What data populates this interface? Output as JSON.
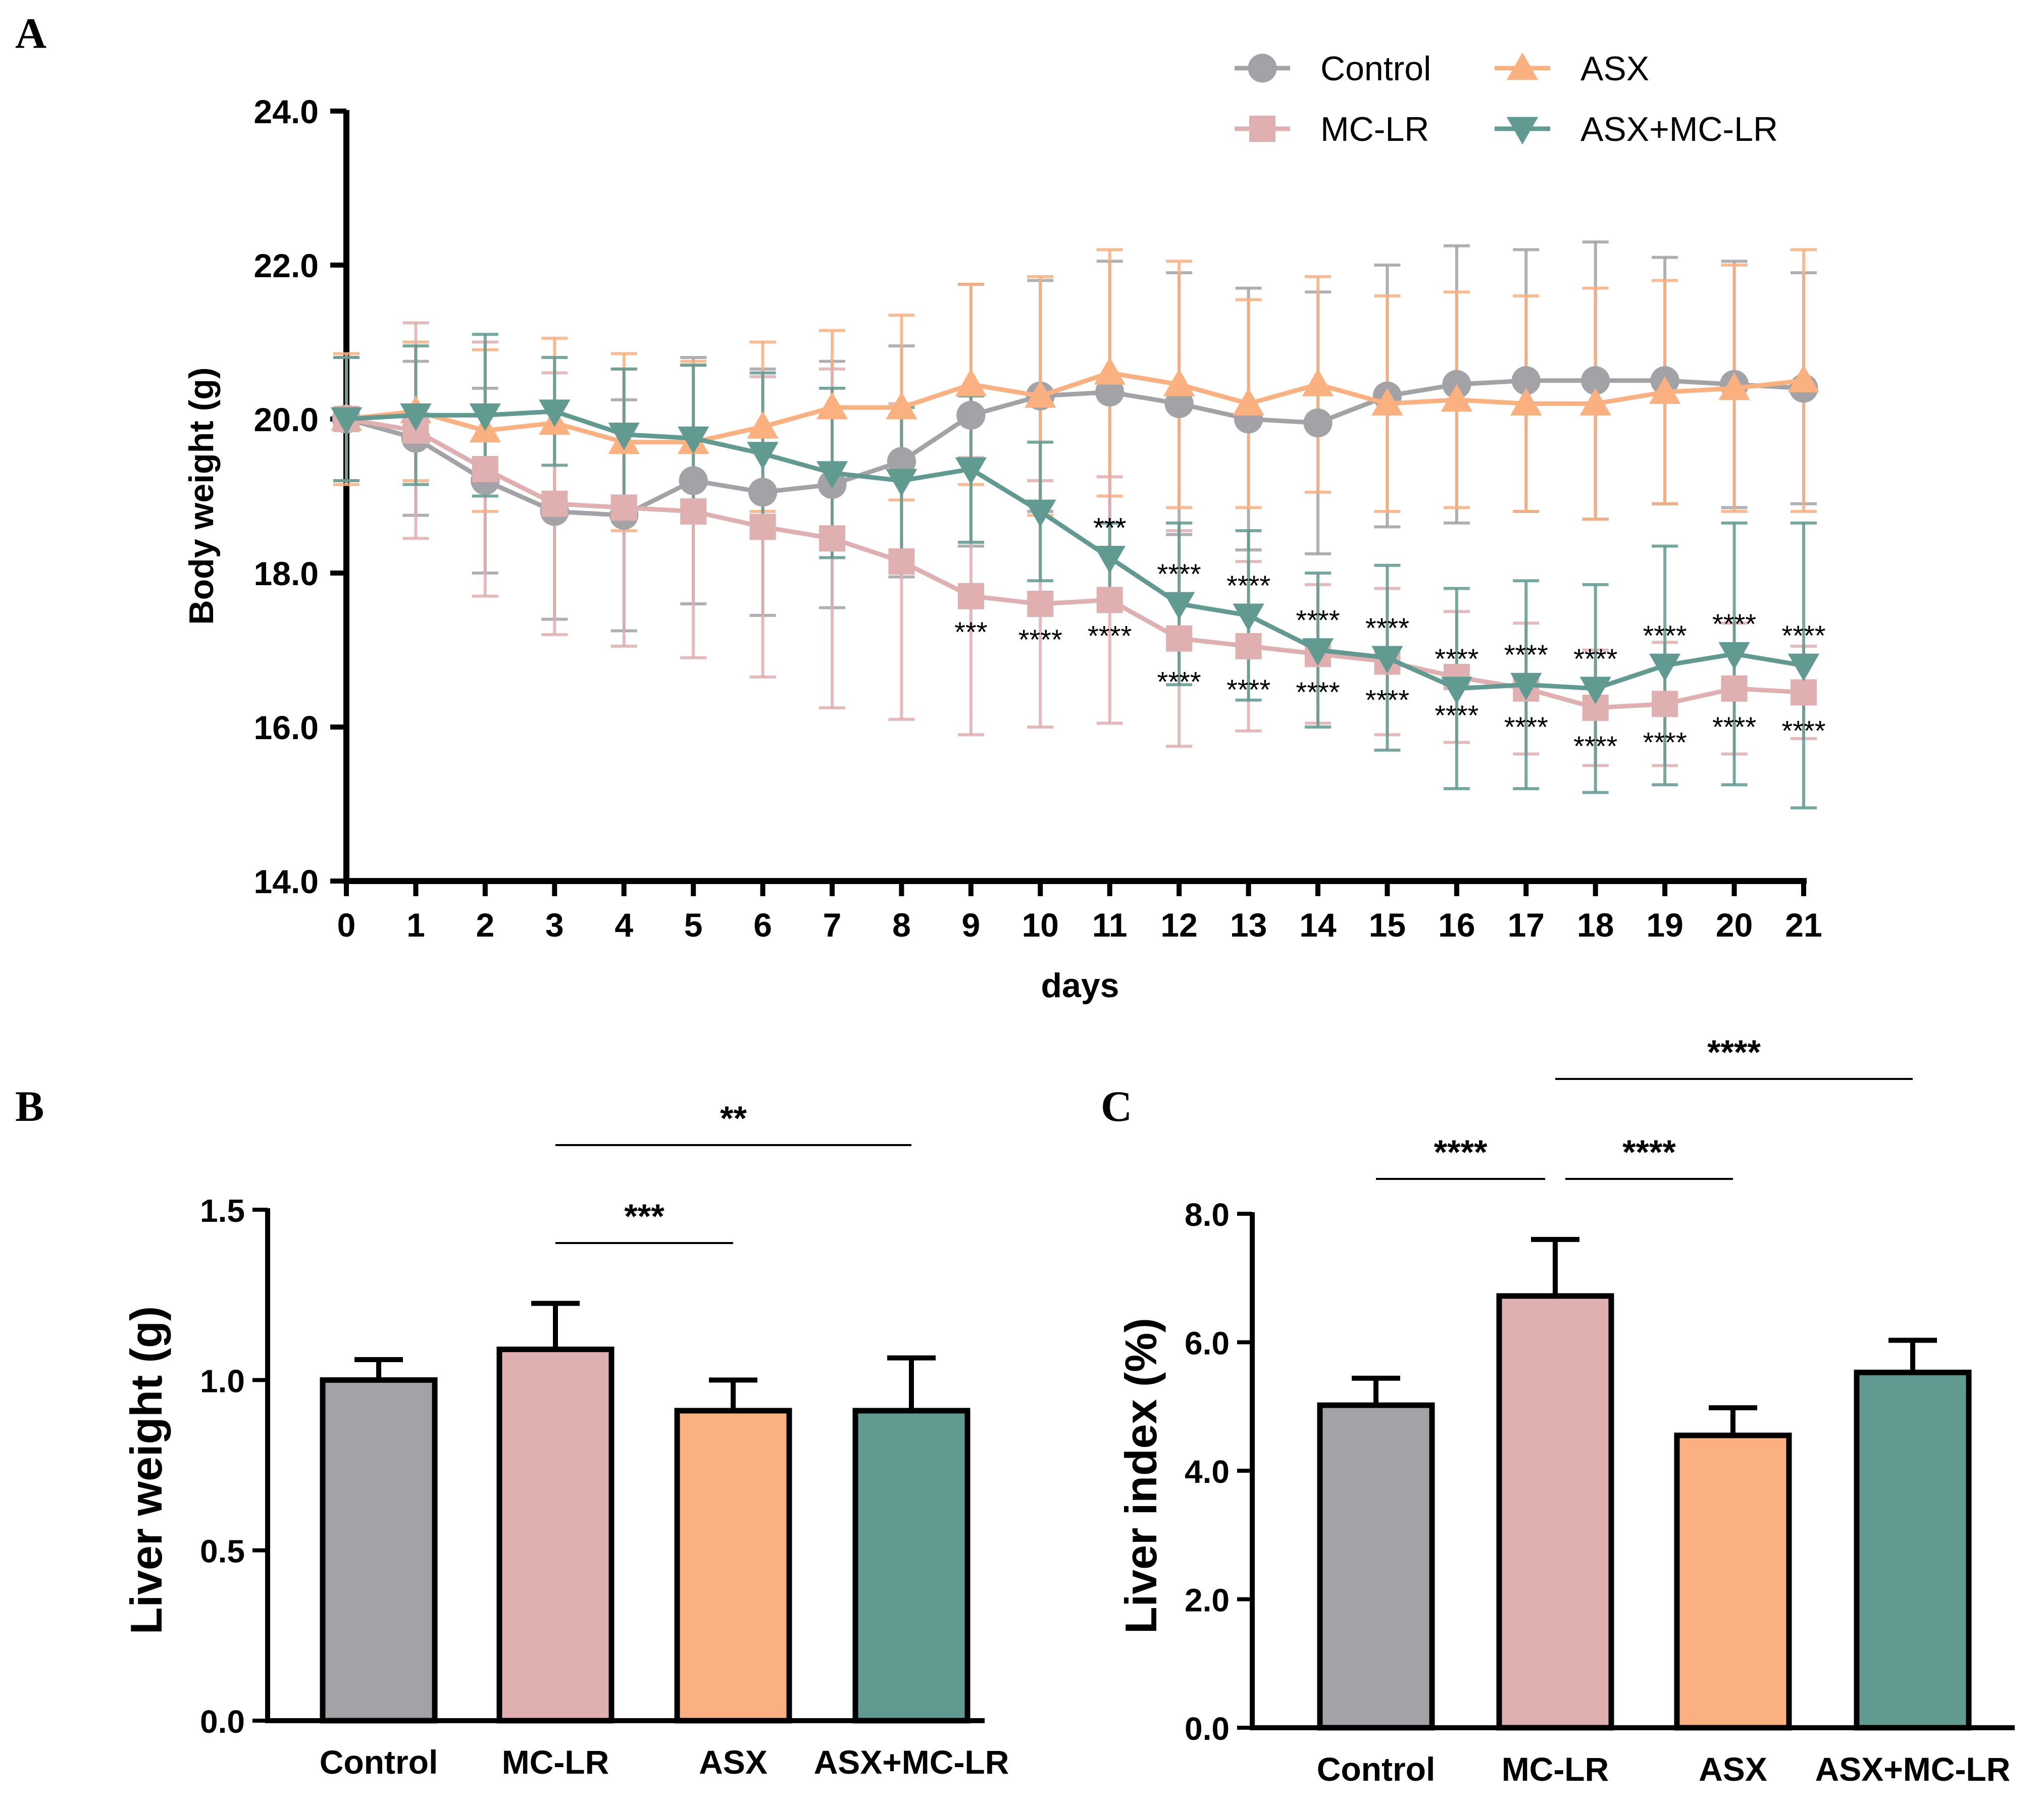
{
  "colors": {
    "control": "#A3A2A7",
    "mclr": "#E0AFB0",
    "asx": "#FBB07F",
    "asx_mclr": "#609A90",
    "axis": "#000000"
  },
  "chart_data": [
    {
      "panel": "A",
      "type": "line",
      "title": "",
      "xlabel": "days",
      "ylabel": "Body weight (g)",
      "xlim": [
        0,
        21
      ],
      "ylim": [
        14.0,
        24.0
      ],
      "x_ticks": [
        "0",
        "1",
        "2",
        "3",
        "4",
        "5",
        "6",
        "7",
        "8",
        "9",
        "10",
        "11",
        "12",
        "13",
        "14",
        "15",
        "16",
        "17",
        "18",
        "19",
        "20",
        "21"
      ],
      "y_ticks": [
        "14.0",
        "16.0",
        "18.0",
        "20.0",
        "22.0",
        "24.0"
      ],
      "legend_position": "top-right",
      "x": [
        0,
        1,
        2,
        3,
        4,
        5,
        6,
        7,
        8,
        9,
        10,
        11,
        12,
        13,
        14,
        15,
        16,
        17,
        18,
        19,
        20,
        21
      ],
      "series": [
        {
          "name": "Control",
          "marker": "circle",
          "color_key": "control",
          "values": [
            20.0,
            19.75,
            19.2,
            18.8,
            18.75,
            19.2,
            19.05,
            19.15,
            19.45,
            20.05,
            20.3,
            20.35,
            20.2,
            20.0,
            19.95,
            20.3,
            20.45,
            20.5,
            20.5,
            20.5,
            20.45,
            20.4
          ],
          "errors": [
            0.8,
            1.0,
            1.2,
            1.4,
            1.5,
            1.6,
            1.6,
            1.6,
            1.5,
            1.7,
            1.5,
            1.7,
            1.7,
            1.7,
            1.7,
            1.7,
            1.8,
            1.7,
            1.8,
            1.6,
            1.6,
            1.5
          ]
        },
        {
          "name": "MC-LR",
          "marker": "square",
          "color_key": "mclr",
          "values": [
            20.0,
            19.85,
            19.35,
            18.9,
            18.85,
            18.8,
            18.6,
            18.45,
            18.15,
            17.7,
            17.6,
            17.65,
            17.15,
            17.05,
            16.95,
            16.85,
            16.65,
            16.5,
            16.25,
            16.3,
            16.5,
            16.45
          ],
          "errors": [
            0.8,
            1.4,
            1.65,
            1.7,
            1.8,
            1.9,
            1.95,
            2.2,
            2.05,
            1.8,
            1.6,
            1.6,
            1.4,
            1.1,
            0.9,
            0.95,
            0.85,
            0.85,
            0.75,
            0.8,
            0.85,
            0.6
          ]
        },
        {
          "name": "ASX",
          "marker": "triangle-up",
          "color_key": "asx",
          "values": [
            20.0,
            20.1,
            19.85,
            19.95,
            19.7,
            19.7,
            19.9,
            20.15,
            20.15,
            20.45,
            20.3,
            20.6,
            20.45,
            20.2,
            20.45,
            20.2,
            20.25,
            20.2,
            20.2,
            20.35,
            20.4,
            20.5
          ],
          "errors": [
            0.85,
            0.9,
            1.05,
            1.1,
            1.15,
            1.05,
            1.1,
            1.0,
            1.2,
            1.3,
            1.55,
            1.6,
            1.6,
            1.35,
            1.4,
            1.4,
            1.4,
            1.4,
            1.5,
            1.45,
            1.6,
            1.7
          ]
        },
        {
          "name": "ASX+MC-LR",
          "marker": "triangle-down",
          "color_key": "asx_mclr",
          "values": [
            20.0,
            20.05,
            20.05,
            20.1,
            19.8,
            19.75,
            19.55,
            19.3,
            19.2,
            19.35,
            18.8,
            18.2,
            17.6,
            17.45,
            17.0,
            16.9,
            16.5,
            16.55,
            16.5,
            16.8,
            16.95,
            16.8
          ],
          "errors": [
            0.8,
            0.9,
            1.05,
            0.7,
            0.85,
            0.95,
            1.05,
            1.1,
            0.95,
            0.95,
            0.9,
            0.45,
            1.05,
            1.1,
            1.0,
            1.2,
            1.3,
            1.35,
            1.35,
            1.55,
            1.7,
            1.85
          ]
        }
      ],
      "annotations": [
        {
          "series": "MC-LR",
          "placement": "below",
          "labels": [
            {
              "x": 9,
              "text": "***"
            },
            {
              "x": 10,
              "text": "****"
            },
            {
              "x": 11,
              "text": "****"
            },
            {
              "x": 12,
              "text": "****"
            },
            {
              "x": 13,
              "text": "****"
            },
            {
              "x": 14,
              "text": "****"
            },
            {
              "x": 15,
              "text": "****"
            },
            {
              "x": 16,
              "text": "****"
            },
            {
              "x": 17,
              "text": "****"
            },
            {
              "x": 18,
              "text": "****"
            },
            {
              "x": 19,
              "text": "****"
            },
            {
              "x": 20,
              "text": "****"
            },
            {
              "x": 21,
              "text": "****"
            }
          ]
        },
        {
          "series": "ASX+MC-LR",
          "placement": "above",
          "labels": [
            {
              "x": 11,
              "text": "***"
            },
            {
              "x": 12,
              "text": "****"
            },
            {
              "x": 13,
              "text": "****"
            },
            {
              "x": 14,
              "text": "****"
            },
            {
              "x": 15,
              "text": "****"
            },
            {
              "x": 16,
              "text": "****"
            },
            {
              "x": 17,
              "text": "****"
            },
            {
              "x": 18,
              "text": "****"
            },
            {
              "x": 19,
              "text": "****"
            },
            {
              "x": 20,
              "text": "****"
            },
            {
              "x": 21,
              "text": "****"
            }
          ]
        }
      ]
    },
    {
      "panel": "B",
      "type": "bar",
      "title": "",
      "xlabel": "",
      "ylabel": "Liver weight (g)",
      "ylim": [
        0.0,
        1.5
      ],
      "y_ticks": [
        "0.0",
        "0.5",
        "1.0",
        "1.5"
      ],
      "categories": [
        "Control",
        "MC-LR",
        "ASX",
        "ASX+MC-LR"
      ],
      "color_keys": [
        "control",
        "mclr",
        "asx",
        "asx_mclr"
      ],
      "values": [
        1.0,
        1.09,
        0.91,
        0.91
      ],
      "errors": [
        0.06,
        0.135,
        0.09,
        0.155
      ],
      "significance": [
        {
          "from": 1,
          "to": 2,
          "text": "***"
        },
        {
          "from": 1,
          "to": 3,
          "text": "**"
        }
      ]
    },
    {
      "panel": "C",
      "type": "bar",
      "title": "",
      "xlabel": "",
      "ylabel": "Liver index (%)",
      "ylim": [
        0.0,
        8.0
      ],
      "y_ticks": [
        "0.0",
        "2.0",
        "4.0",
        "6.0",
        "8.0"
      ],
      "categories": [
        "Control",
        "MC-LR",
        "ASX",
        "ASX+MC-LR"
      ],
      "color_keys": [
        "control",
        "mclr",
        "asx",
        "asx_mclr"
      ],
      "values": [
        5.02,
        6.72,
        4.55,
        5.53
      ],
      "errors": [
        0.42,
        0.88,
        0.43,
        0.5
      ],
      "significance": [
        {
          "from": 0,
          "to": 1,
          "text": "****"
        },
        {
          "from": 1,
          "to": 2,
          "text": "****"
        },
        {
          "from": 1,
          "to": 3,
          "text": "****"
        }
      ]
    }
  ]
}
